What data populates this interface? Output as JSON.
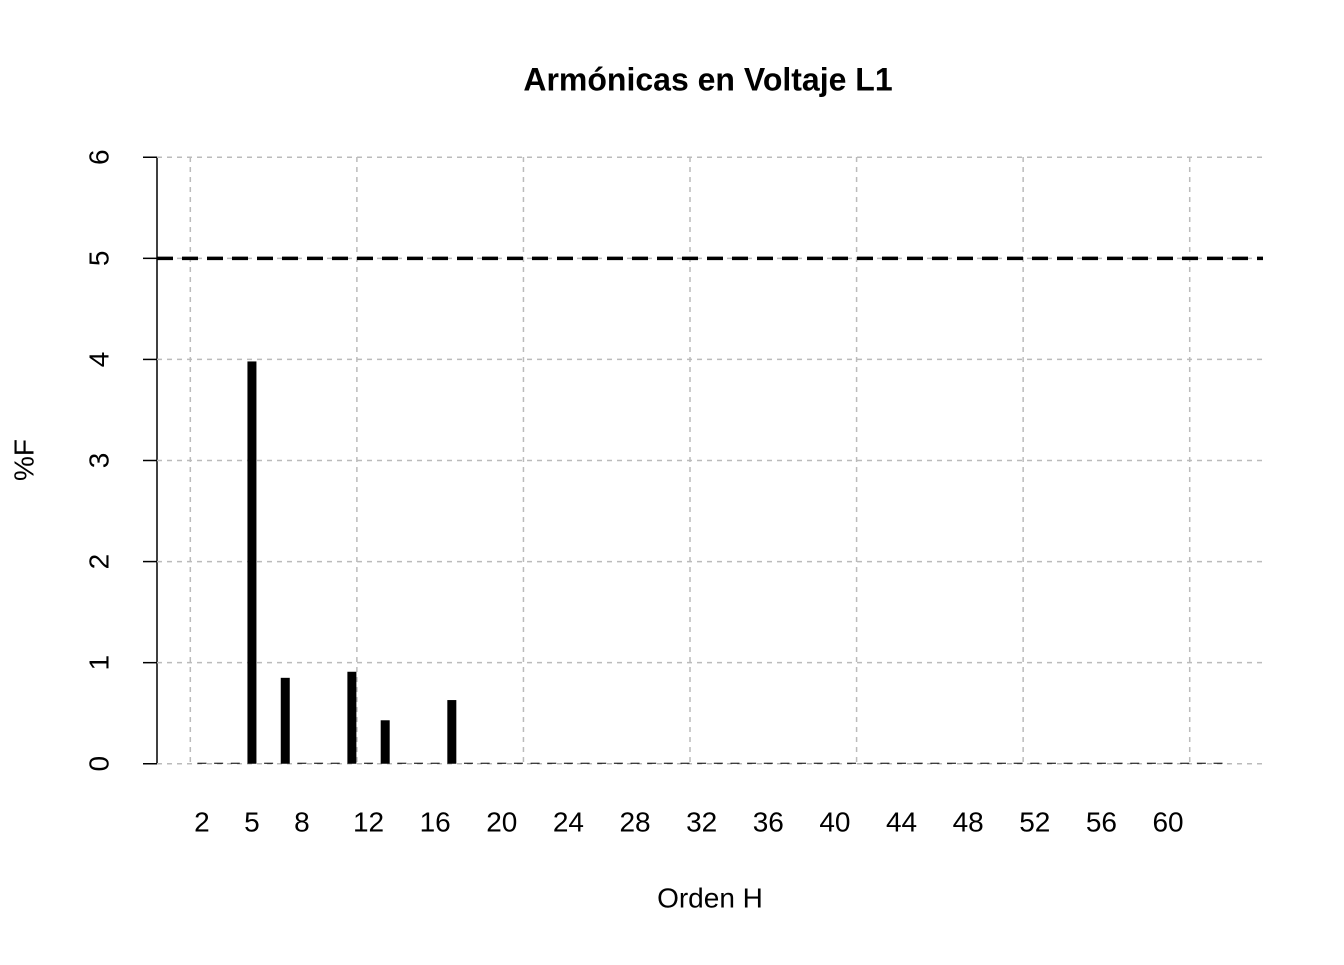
{
  "chart_data": {
    "type": "bar",
    "title": "Armónicas en Voltaje L1",
    "x_label": "Orden H",
    "y_label": "%F",
    "x": [
      2,
      3,
      4,
      5,
      6,
      7,
      8,
      9,
      10,
      11,
      12,
      13,
      14,
      15,
      16,
      17,
      18,
      19,
      20,
      21,
      22,
      23,
      24,
      25,
      26,
      27,
      28,
      29,
      30,
      31,
      32,
      33,
      34,
      35,
      36,
      37,
      38,
      39,
      40,
      41,
      42,
      43,
      44,
      45,
      46,
      47,
      48,
      49,
      50,
      51,
      52,
      53,
      54,
      55,
      56,
      57,
      58,
      59,
      60,
      61,
      62,
      63
    ],
    "values": [
      0.01,
      0.01,
      0.01,
      3.98,
      0.01,
      0.85,
      0.01,
      0.01,
      0.01,
      0.91,
      0.01,
      0.43,
      0.01,
      0.01,
      0.01,
      0.63,
      0.01,
      0.01,
      0.01,
      0.01,
      0.01,
      0.01,
      0.01,
      0.01,
      0.01,
      0.01,
      0.01,
      0.01,
      0.01,
      0.01,
      0.01,
      0.01,
      0.01,
      0.01,
      0.01,
      0.01,
      0.01,
      0.01,
      0.01,
      0.01,
      0.01,
      0.01,
      0.01,
      0.01,
      0.01,
      0.01,
      0.01,
      0.01,
      0.01,
      0.01,
      0.01,
      0.01,
      0.01,
      0.01,
      0.01,
      0.01,
      0.01,
      0.01,
      0.01,
      0.01,
      0.01,
      0.01
    ],
    "color": "#000000",
    "xlim": [
      -0.7,
      65.7
    ],
    "xticks": [
      2,
      5,
      8,
      12,
      16,
      20,
      24,
      28,
      32,
      36,
      40,
      44,
      48,
      52,
      56,
      60
    ],
    "xgrid": [
      1.3,
      11.3,
      21.3,
      31.3,
      41.3,
      51.3,
      61.3
    ],
    "ylim": [
      -0.24,
      6.24
    ],
    "yticks": [
      0,
      1,
      2,
      3,
      4,
      5,
      6
    ],
    "limit_line": 5,
    "grid": true
  }
}
